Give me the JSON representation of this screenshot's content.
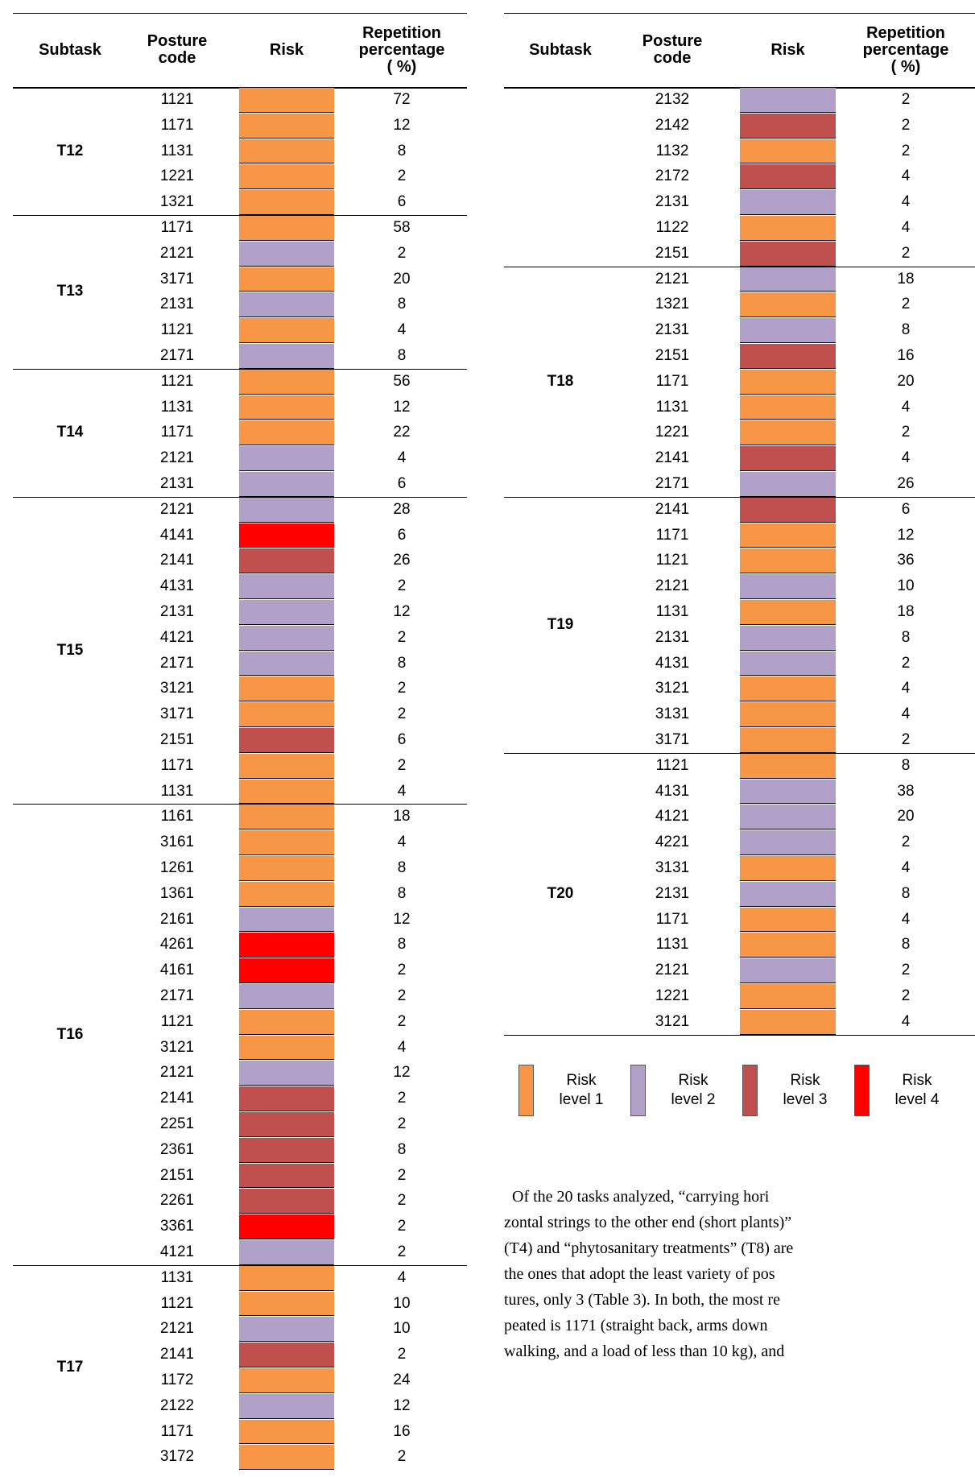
{
  "header": {
    "subtask": "Subtask",
    "posture": "Posture\ncode",
    "risk": "Risk",
    "percentage": "Repetition\npercentage\n( %)"
  },
  "tables": [
    {
      "groups": [
        {
          "subtask": "T12",
          "rows": [
            [
              "1121",
              1,
              "72"
            ],
            [
              "1171",
              1,
              "12"
            ],
            [
              "1131",
              1,
              "8"
            ],
            [
              "1221",
              1,
              "2"
            ],
            [
              "1321",
              1,
              "6"
            ]
          ]
        },
        {
          "subtask": "T13",
          "rows": [
            [
              "1171",
              1,
              "58"
            ],
            [
              "2121",
              2,
              "2"
            ],
            [
              "3171",
              1,
              "20"
            ],
            [
              "2131",
              2,
              "8"
            ],
            [
              "1121",
              1,
              "4"
            ],
            [
              "2171",
              2,
              "8"
            ]
          ]
        },
        {
          "subtask": "T14",
          "rows": [
            [
              "1121",
              1,
              "56"
            ],
            [
              "1131",
              1,
              "12"
            ],
            [
              "1171",
              1,
              "22"
            ],
            [
              "2121",
              2,
              "4"
            ],
            [
              "2131",
              2,
              "6"
            ]
          ]
        },
        {
          "subtask": "T15",
          "rows": [
            [
              "2121",
              2,
              "28"
            ],
            [
              "4141",
              4,
              "6"
            ],
            [
              "2141",
              3,
              "26"
            ],
            [
              "4131",
              2,
              "2"
            ],
            [
              "2131",
              2,
              "12"
            ],
            [
              "4121",
              2,
              "2"
            ],
            [
              "2171",
              2,
              "8"
            ],
            [
              "3121",
              1,
              "2"
            ],
            [
              "3171",
              1,
              "2"
            ],
            [
              "2151",
              3,
              "6"
            ],
            [
              "1171",
              1,
              "2"
            ],
            [
              "1131",
              1,
              "4"
            ]
          ]
        },
        {
          "subtask": "T16",
          "rows": [
            [
              "1161",
              1,
              "18"
            ],
            [
              "3161",
              1,
              "4"
            ],
            [
              "1261",
              1,
              "8"
            ],
            [
              "1361",
              1,
              "8"
            ],
            [
              "2161",
              2,
              "12"
            ],
            [
              "4261",
              4,
              "8"
            ],
            [
              "4161",
              4,
              "2"
            ],
            [
              "2171",
              2,
              "2"
            ],
            [
              "1121",
              1,
              "2"
            ],
            [
              "3121",
              1,
              "4"
            ],
            [
              "2121",
              2,
              "12"
            ],
            [
              "2141",
              3,
              "2"
            ],
            [
              "2251",
              3,
              "2"
            ],
            [
              "2361",
              3,
              "8"
            ],
            [
              "2151",
              3,
              "2"
            ],
            [
              "2261",
              3,
              "2"
            ],
            [
              "3361",
              4,
              "2"
            ],
            [
              "4121",
              2,
              "2"
            ]
          ]
        },
        {
          "subtask": "T17",
          "rows": [
            [
              "1131",
              1,
              "4"
            ],
            [
              "1121",
              1,
              "10"
            ],
            [
              "2121",
              2,
              "10"
            ],
            [
              "2141",
              3,
              "2"
            ],
            [
              "1172",
              1,
              "24"
            ],
            [
              "2122",
              2,
              "12"
            ],
            [
              "1171",
              1,
              "16"
            ],
            [
              "3172",
              1,
              "2"
            ]
          ]
        }
      ]
    },
    {
      "groups": [
        {
          "subtask": null,
          "rows": [
            [
              "2132",
              2,
              "2"
            ],
            [
              "2142",
              3,
              "2"
            ],
            [
              "1132",
              1,
              "2"
            ],
            [
              "2172",
              3,
              "4"
            ],
            [
              "2131",
              2,
              "4"
            ],
            [
              "1122",
              1,
              "4"
            ],
            [
              "2151",
              3,
              "2"
            ]
          ]
        },
        {
          "subtask": "T18",
          "rows": [
            [
              "2121",
              2,
              "18"
            ],
            [
              "1321",
              1,
              "2"
            ],
            [
              "2131",
              2,
              "8"
            ],
            [
              "2151",
              3,
              "16"
            ],
            [
              "1171",
              1,
              "20"
            ],
            [
              "1131",
              1,
              "4"
            ],
            [
              "1221",
              1,
              "2"
            ],
            [
              "2141",
              3,
              "4"
            ],
            [
              "2171",
              2,
              "26"
            ]
          ]
        },
        {
          "subtask": "T19",
          "rows": [
            [
              "2141",
              3,
              "6"
            ],
            [
              "1171",
              1,
              "12"
            ],
            [
              "1121",
              1,
              "36"
            ],
            [
              "2121",
              2,
              "10"
            ],
            [
              "1131",
              1,
              "18"
            ],
            [
              "2131",
              2,
              "8"
            ],
            [
              "4131",
              2,
              "2"
            ],
            [
              "3121",
              1,
              "4"
            ],
            [
              "3131",
              1,
              "4"
            ],
            [
              "3171",
              1,
              "2"
            ]
          ]
        },
        {
          "subtask": "T20",
          "rows": [
            [
              "1121",
              1,
              "8"
            ],
            [
              "4131",
              2,
              "38"
            ],
            [
              "4121",
              2,
              "20"
            ],
            [
              "4221",
              2,
              "2"
            ],
            [
              "3131",
              1,
              "4"
            ],
            [
              "2131",
              2,
              "8"
            ],
            [
              "1171",
              1,
              "4"
            ],
            [
              "1131",
              1,
              "8"
            ],
            [
              "2121",
              2,
              "2"
            ],
            [
              "1221",
              1,
              "2"
            ],
            [
              "3121",
              1,
              "4"
            ]
          ]
        }
      ]
    }
  ],
  "legend": [
    {
      "label": "Risk\nlevel 1",
      "color": "#f79646"
    },
    {
      "label": "Risk\nlevel 2",
      "color": "#b1a0c7"
    },
    {
      "label": "Risk\nlevel 3",
      "color": "#c0504d"
    },
    {
      "label": "Risk\nlevel 4",
      "color": "#ff0000"
    }
  ],
  "paragraph": [
    "Of the 20 tasks analyzed, “carrying hori",
    "zontal strings to the other end (short plants)”",
    "(T4) and “phytosanitary treatments” (T8) are",
    "the ones that adopt the least variety of pos",
    "tures, only 3 (Table 3). In both, the most re",
    "peated is 1171 (straight back, arms down",
    "walking, and a load of less than 10 kg), and"
  ]
}
